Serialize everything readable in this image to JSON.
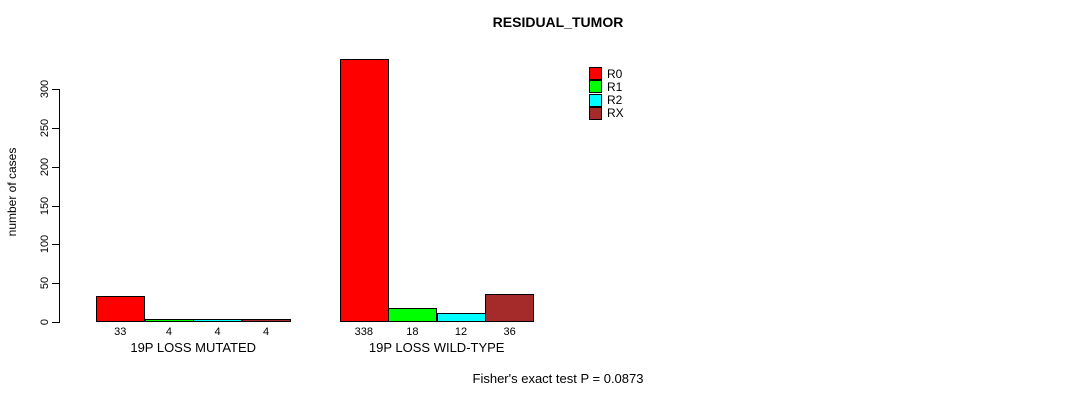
{
  "chart_data": {
    "type": "bar",
    "title": "RESIDUAL_TUMOR",
    "ylabel": "number of cases",
    "xlabel": "",
    "categories": [
      "19P LOSS MUTATED",
      "19P LOSS WILD-TYPE"
    ],
    "series": [
      {
        "name": "R0",
        "color": "#ff0000",
        "values": [
          33,
          338
        ]
      },
      {
        "name": "R1",
        "color": "#00ff00",
        "values": [
          4,
          18
        ]
      },
      {
        "name": "R2",
        "color": "#00ffff",
        "values": [
          4,
          12
        ]
      },
      {
        "name": "RX",
        "color": "#a52a2a",
        "values": [
          4,
          36
        ]
      }
    ],
    "yticks": [
      0,
      50,
      100,
      150,
      200,
      250,
      300
    ],
    "ylim": [
      0,
      300
    ],
    "grid": false,
    "legend_position": "top-right",
    "bar_values_shown": [
      [
        33,
        4,
        4,
        4
      ],
      [
        338,
        18,
        12,
        36
      ]
    ],
    "annotation": "Fisher's exact test P = 0.0873"
  }
}
